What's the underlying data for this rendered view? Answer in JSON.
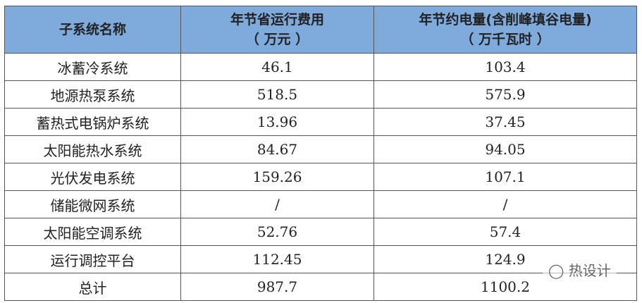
{
  "header": {
    "col1": "子系统名称",
    "col2_line1": "年节省运行费用",
    "col2_line2": "（ 万元 ）",
    "col3_line1": "年节约电量(含削峰填谷电量)",
    "col3_line2": "（ 万千瓦时 ）"
  },
  "rows": [
    [
      "冰蓄冷系统",
      "46.1",
      "103.4"
    ],
    [
      "地源热泵系统",
      "518.5",
      "575.9"
    ],
    [
      "蓄热式电锅炉系统",
      "13.96",
      "37.45"
    ],
    [
      "太阳能热水系统",
      "84.67",
      "94.05"
    ],
    [
      "光伏发电系统",
      "159.26",
      "107.1"
    ],
    [
      "储能微网系统",
      "/",
      "/"
    ],
    [
      "太阳能空调系统",
      "52.76",
      "57.4"
    ],
    [
      "运行调控平台",
      "112.45",
      "124.9"
    ],
    [
      "总计",
      "987.7",
      "1100.2"
    ]
  ],
  "watermark": "热设计",
  "colors": {
    "header_bg": "#7fabdc"
  }
}
